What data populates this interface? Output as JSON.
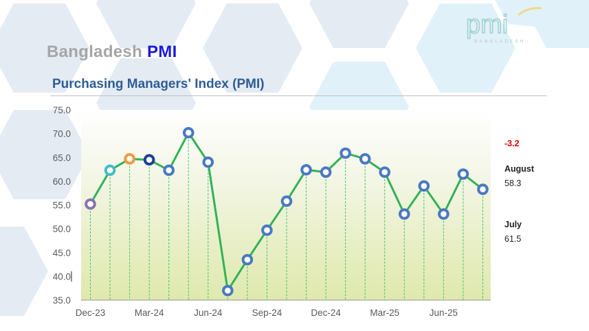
{
  "header": {
    "brand_prefix": "Bangladesh",
    "brand_suffix": "PMI",
    "subtitle": "Purchasing Managers' Index (PMI)",
    "logo_text": "pmi",
    "logo_subtext": "BANGLADESH"
  },
  "side_panel": {
    "change": "-3.2",
    "current_label": "August",
    "current_value": "58.3",
    "previous_label": "July",
    "previous_value": "61.5"
  },
  "colors": {
    "line": "#2fb257",
    "marker": "#4a78c2",
    "dropline": "#3cc46a",
    "brand_blue": "#1a1ad8",
    "subtitle_blue": "#2e5d96",
    "negative": "#e00000"
  },
  "chart_data": {
    "type": "line",
    "title": "Purchasing Managers' Index (PMI)",
    "xlabel": "",
    "ylabel": "",
    "ylim": [
      35.0,
      75.0
    ],
    "yticks": [
      "75.0",
      "70.0",
      "65.0",
      "60.0",
      "55.0",
      "50.0",
      "45.0",
      "40.0",
      "35.0"
    ],
    "xtick_labels": [
      "Dec-23",
      "Mar-24",
      "Jun-24",
      "Sep-24",
      "Dec-24",
      "Mar-25",
      "Jun-25"
    ],
    "grid": false,
    "drop_lines": true,
    "categories": [
      "Dec-23",
      "Jan-24",
      "Feb-24",
      "Mar-24",
      "Apr-24",
      "May-24",
      "Jun-24",
      "Jul-24",
      "Aug-24",
      "Sep-24",
      "Oct-24",
      "Nov-24",
      "Dec-24",
      "Jan-25",
      "Feb-25",
      "Mar-25",
      "Apr-25",
      "May-25",
      "Jun-25",
      "Jul-25",
      "Aug-25"
    ],
    "series": [
      {
        "name": "PMI",
        "values": [
          55.2,
          62.3,
          64.7,
          64.5,
          62.3,
          70.2,
          64.0,
          37.0,
          43.5,
          49.7,
          55.8,
          62.4,
          61.9,
          65.9,
          64.7,
          61.9,
          53.1,
          59.0,
          53.1,
          61.5,
          58.3
        ]
      }
    ],
    "marker_colors": [
      "#8a72b0",
      "#45bcc6",
      "#f09a3e",
      "#1c3f95",
      "#4a78c2",
      "#4a78c2",
      "#4a78c2",
      "#4a78c2",
      "#4a78c2",
      "#4a78c2",
      "#4a78c2",
      "#4a78c2",
      "#4a78c2",
      "#4a78c2",
      "#4a78c2",
      "#4a78c2",
      "#4a78c2",
      "#4a78c2",
      "#4a78c2",
      "#4a78c2",
      "#4a78c2"
    ]
  }
}
